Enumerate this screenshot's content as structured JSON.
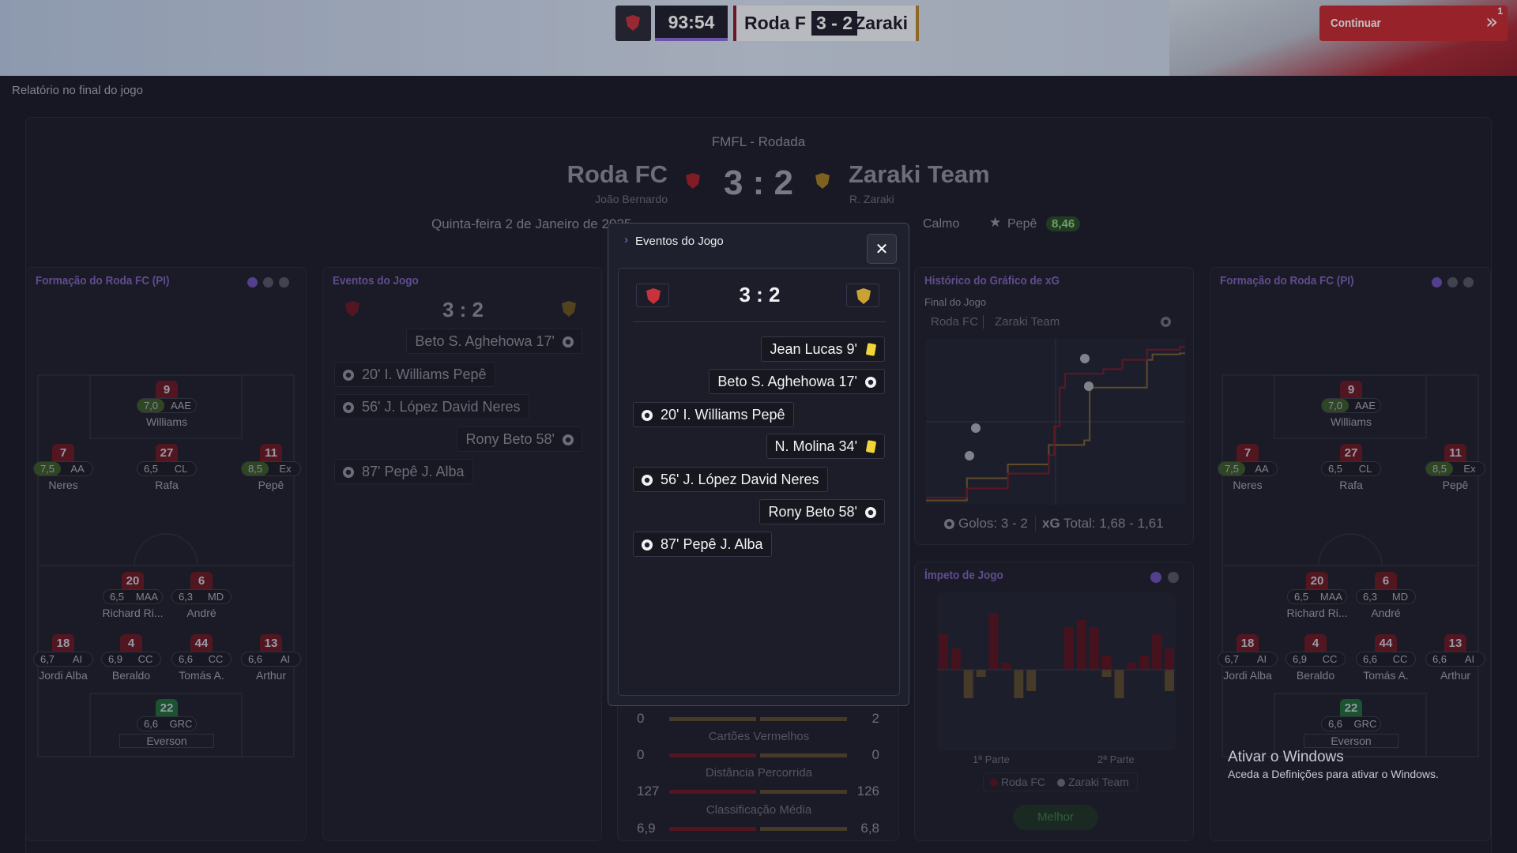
{
  "topbar": {
    "clock": "93:54",
    "home": "Roda F",
    "score": "3 - 2",
    "away": "Zaraki",
    "continue": "Continuar",
    "notifications": "1"
  },
  "page_title": "Relatório no final do jogo",
  "header": {
    "competition": "FMFL - Rodada",
    "home": "Roda FC",
    "home_manager": "João Bernardo",
    "score": "3 : 2",
    "away": "Zaraki Team",
    "away_manager": "R. Zaraki",
    "date": "Quinta-feira 2 de Janeiro de 2025",
    "weather": "Calmo",
    "motm": "Pepê",
    "motm_rating": "8,46"
  },
  "formation": {
    "title": "Formação do Roda FC (PI)",
    "players": [
      {
        "number": "9",
        "rating": "7,0",
        "position": "AAE",
        "name": "Williams"
      },
      {
        "number": "7",
        "rating": "7,5",
        "position": "AA",
        "name": "Neres"
      },
      {
        "number": "27",
        "rating": "6,5",
        "position": "CL",
        "name": "Rafa"
      },
      {
        "number": "11",
        "rating": "8,5",
        "position": "Ex",
        "name": "Pepê"
      },
      {
        "number": "20",
        "rating": "6,5",
        "position": "MAA",
        "name": "Richard Ri..."
      },
      {
        "number": "6",
        "rating": "6,3",
        "position": "MD",
        "name": "André"
      },
      {
        "number": "18",
        "rating": "6,7",
        "position": "AI",
        "name": "Jordi Alba"
      },
      {
        "number": "4",
        "rating": "6,9",
        "position": "CC",
        "name": "Beraldo"
      },
      {
        "number": "44",
        "rating": "6,6",
        "position": "CC",
        "name": "Tomás A."
      },
      {
        "number": "13",
        "rating": "6,6",
        "position": "AI",
        "name": "Arthur"
      },
      {
        "number": "22",
        "rating": "6,6",
        "position": "GRC",
        "name": "Everson"
      }
    ]
  },
  "events_panel": {
    "title": "Eventos do Jogo",
    "score": "3 : 2",
    "events": [
      {
        "text": "Beto S. Aghehowa 17'",
        "side": "away"
      },
      {
        "text": "20' I. Williams Pepê",
        "side": "home"
      },
      {
        "text": "56' J. López David Neres",
        "side": "home"
      },
      {
        "text": "Rony Beto 58'",
        "side": "away"
      },
      {
        "text": "87' Pepê J. Alba",
        "side": "home"
      }
    ]
  },
  "stats": {
    "rows": [
      {
        "label": "",
        "home": "0",
        "away": "2"
      },
      {
        "label": "Cartões Vermelhos",
        "home": "0",
        "away": "0"
      },
      {
        "label": "Distância Percorrida",
        "home": "127",
        "away": "126"
      },
      {
        "label": "Classificação Média",
        "home": "6,9",
        "away": "6,8"
      }
    ]
  },
  "xg_panel": {
    "title": "Histórico do Gráfico de xG",
    "subtitle": "Final do Jogo",
    "home": "Roda FC",
    "away": "Zaraki Team",
    "goals": "Golos: 3 - 2",
    "xg_label": "xG",
    "total": "Total: 1,68 - 1,61",
    "home_minutes": [
      0,
      15,
      30,
      45,
      47,
      49,
      51,
      65,
      72,
      81,
      93
    ],
    "home_xg": [
      0.05,
      0.15,
      0.31,
      0.51,
      0.82,
      1.24,
      1.39,
      1.44,
      1.54,
      1.65,
      1.68
    ],
    "away_minutes": [
      0,
      15,
      30,
      45,
      58,
      60,
      67,
      81,
      83,
      93
    ],
    "away_xg": [
      0.02,
      0.26,
      0.41,
      0.62,
      0.67,
      1.24,
      1.24,
      1.54,
      1.6,
      1.61
    ]
  },
  "momentum_panel": {
    "title": "Ímpeto de Jogo",
    "first_half": "1ª Parte",
    "second_half": "2ª Parte",
    "home": "Roda FC",
    "away": "Zaraki Team",
    "button": "Melhor",
    "home_values": [
      5,
      3,
      0,
      0,
      8,
      1,
      0,
      0,
      0,
      0,
      6,
      7,
      6,
      2,
      0,
      1,
      2,
      5,
      3
    ],
    "away_values": [
      0,
      0,
      4,
      1,
      0,
      0,
      4,
      3,
      0,
      0,
      0,
      0,
      0,
      1,
      4,
      0,
      0,
      0,
      3
    ]
  },
  "modal": {
    "title": "Eventos do Jogo",
    "score": "3 : 2",
    "events": [
      {
        "text": "Jean Lucas 9'",
        "side": "away",
        "icon": "yellow_card"
      },
      {
        "text": "Beto S. Aghehowa 17'",
        "side": "away",
        "icon": "goal"
      },
      {
        "text": "20' I. Williams Pepê",
        "side": "home",
        "icon": "goal"
      },
      {
        "text": "N. Molina 34'",
        "side": "away",
        "icon": "yellow_card"
      },
      {
        "text": "56' J. López David Neres",
        "side": "home",
        "icon": "goal"
      },
      {
        "text": "Rony Beto 58'",
        "side": "away",
        "icon": "goal"
      },
      {
        "text": "87' Pepê J. Alba",
        "side": "home",
        "icon": "goal"
      }
    ]
  },
  "watermark": {
    "title": "Ativar o Windows",
    "text": "Aceda a Definições para ativar o Windows."
  }
}
